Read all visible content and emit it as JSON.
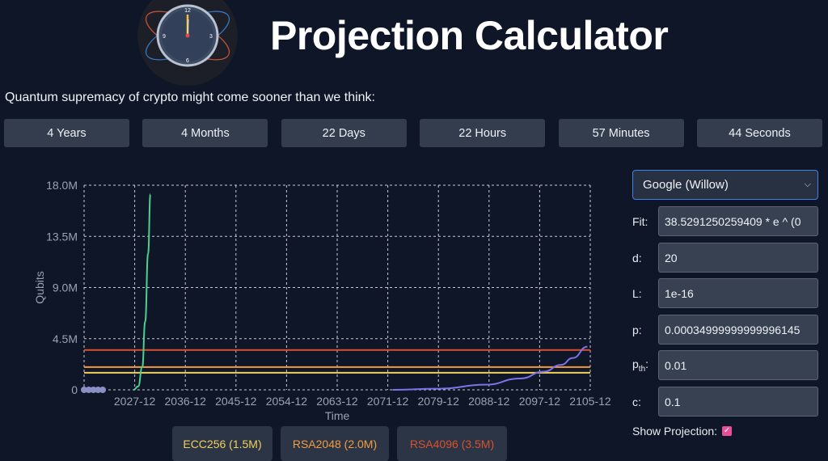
{
  "header": {
    "title": "Projection Calculator",
    "subtitle": "Quantum supremacy of crypto might come sooner than we think:"
  },
  "clock_numbers": [
    "12",
    "3",
    "6",
    "9"
  ],
  "countdown": [
    "4 Years",
    "4 Months",
    "22 Days",
    "22 Hours",
    "57 Minutes",
    "44 Seconds"
  ],
  "legend": [
    {
      "label": "ECC256 (1.5M)",
      "color": "#f2cf5b"
    },
    {
      "label": "RSA2048 (2.0M)",
      "color": "#f29c3f"
    },
    {
      "label": "RSA4096 (3.5M)",
      "color": "#d8502f"
    }
  ],
  "controls": {
    "device_selected": "Google (Willow)",
    "fit_label": "Fit:",
    "fit_value": "38.5291250259409 * e ^ (0",
    "d_label": "d:",
    "d_value": "20",
    "L_label": "L:",
    "L_value": "1e-16",
    "p_label": "p:",
    "p_value": "0.00034999999999996145",
    "pth_label": "p",
    "pth_sub": "th",
    "pth_value": "0.01",
    "c_label": "c:",
    "c_value": "0.1",
    "show_projection_label": "Show Projection:",
    "show_projection_checked": true
  },
  "chart_data": {
    "type": "line",
    "xlabel": "Time",
    "ylabel": "Qubits",
    "x_ticks": [
      "2027-12",
      "2036-12",
      "2045-12",
      "2054-12",
      "2063-12",
      "2071-12",
      "2079-12",
      "2088-12",
      "2097-12",
      "2105-12"
    ],
    "y_ticks": [
      "0",
      "4.5M",
      "9.0M",
      "13.5M",
      "18.0M"
    ],
    "ylim": [
      0,
      18000000
    ],
    "xlim": [
      2019.0,
      2106.0
    ],
    "grid": true,
    "series": [
      {
        "color": "#4fd08f",
        "points": [
          [
            2027.5,
            0
          ],
          [
            2028.3,
            300000
          ],
          [
            2029.0,
            2000000
          ],
          [
            2029.5,
            6000000
          ],
          [
            2030.0,
            12000000
          ],
          [
            2030.4,
            17200000
          ]
        ]
      },
      {
        "color": "#7b73e8",
        "points": [
          [
            2072.0,
            0
          ],
          [
            2080.0,
            100000
          ],
          [
            2088.0,
            450000
          ],
          [
            2094.0,
            1000000
          ],
          [
            2098.0,
            1600000
          ],
          [
            2101.0,
            2200000
          ],
          [
            2103.0,
            2800000
          ],
          [
            2105.5,
            3800000
          ]
        ]
      }
    ],
    "thresholds": [
      {
        "name": "ECC256",
        "value": 1500000,
        "color": "#f2cf5b"
      },
      {
        "name": "RSA2048",
        "value": 2000000,
        "color": "#f29c3f"
      },
      {
        "name": "RSA4096",
        "value": 3500000,
        "color": "#d8502f"
      }
    ],
    "observed_points": [
      [
        2019.0,
        0
      ],
      [
        2019.8,
        0
      ],
      [
        2020.6,
        0
      ],
      [
        2021.4,
        0
      ],
      [
        2022.2,
        0
      ]
    ],
    "observed_color": "#8a8fc4"
  }
}
